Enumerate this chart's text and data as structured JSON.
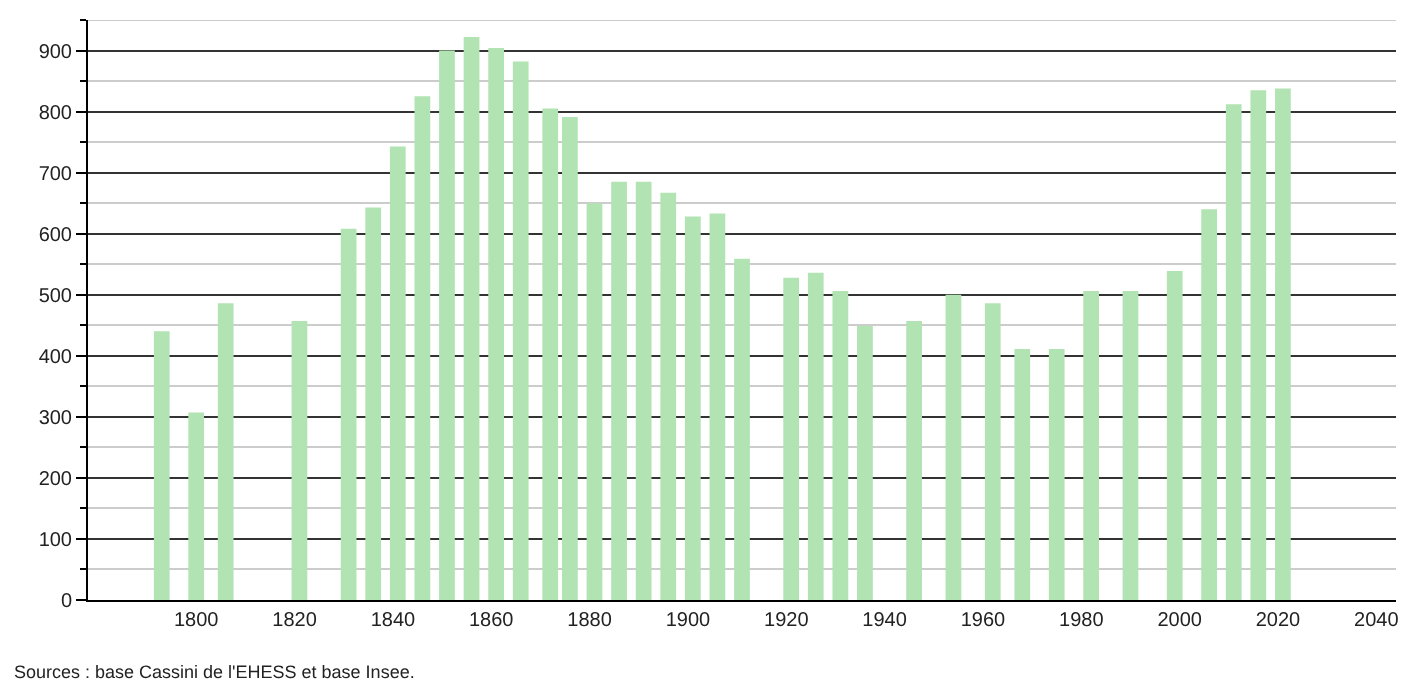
{
  "chart_data": {
    "type": "bar",
    "x": [
      1793,
      1800,
      1806,
      1821,
      1831,
      1836,
      1841,
      1846,
      1851,
      1856,
      1861,
      1866,
      1872,
      1876,
      1881,
      1886,
      1891,
      1896,
      1901,
      1906,
      1911,
      1921,
      1926,
      1931,
      1936,
      1946,
      1954,
      1962,
      1968,
      1975,
      1982,
      1990,
      1999,
      2006,
      2011,
      2016,
      2021
    ],
    "values": [
      440,
      307,
      486,
      457,
      608,
      643,
      743,
      825,
      900,
      922,
      904,
      882,
      805,
      791,
      650,
      685,
      685,
      667,
      628,
      633,
      559,
      528,
      536,
      506,
      449,
      457,
      500,
      486,
      411,
      411,
      506,
      506,
      539,
      640,
      812,
      835,
      838
    ],
    "color": "#b2e3b2",
    "xlim": [
      1778,
      2044
    ],
    "xticks": [
      1800,
      1820,
      1840,
      1860,
      1880,
      1900,
      1920,
      1940,
      1960,
      1980,
      2000,
      2020,
      2040
    ],
    "ylim": [
      0,
      950
    ],
    "yticks": [
      0,
      100,
      200,
      300,
      400,
      500,
      600,
      700,
      800,
      900
    ],
    "grid": "y",
    "annotations": [
      "Sources : base Cassini de l'EHESS et base Insee."
    ]
  }
}
